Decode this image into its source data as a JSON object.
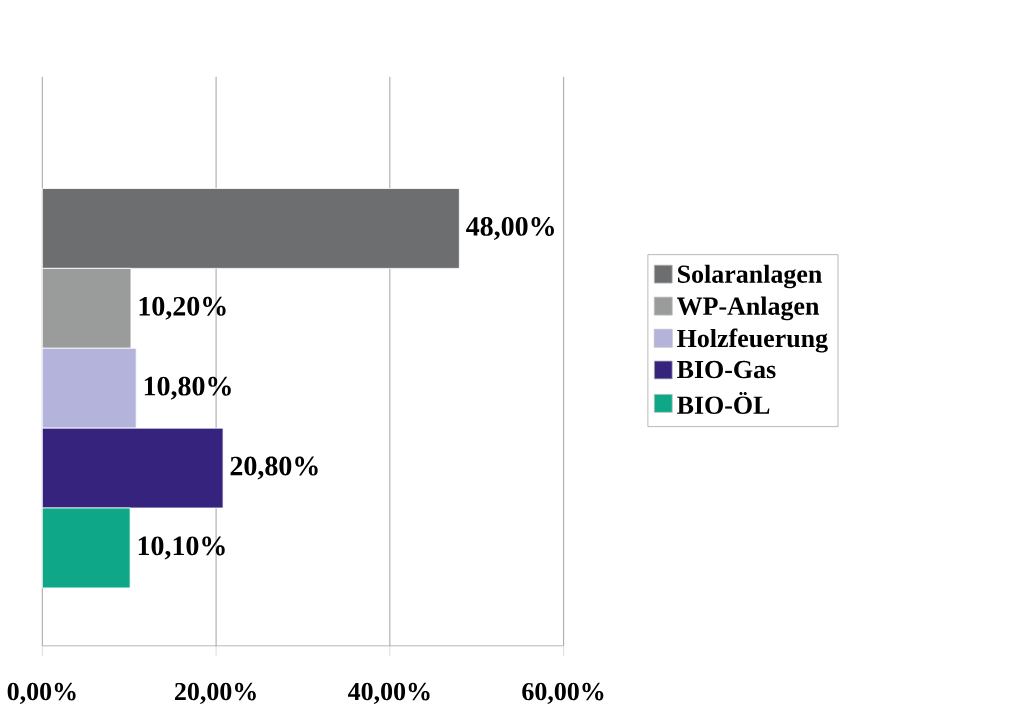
{
  "chart_data": {
    "type": "bar",
    "orientation": "horizontal",
    "categories": [
      null
    ],
    "series": [
      {
        "name": "Solaranlagen",
        "color": "#6d6e70",
        "values": [
          48.0
        ],
        "value_labels": [
          "48,00%"
        ]
      },
      {
        "name": "WP-Anlagen",
        "color": "#9a9c9c",
        "values": [
          10.2
        ],
        "value_labels": [
          "10,20%"
        ]
      },
      {
        "name": "Holzfeuerung",
        "color": "#b3b3dc",
        "values": [
          10.8
        ],
        "value_labels": [
          "10,80%"
        ]
      },
      {
        "name": "BIO-Gas",
        "color": "#35237e",
        "values": [
          20.8
        ],
        "value_labels": [
          "20,80%"
        ]
      },
      {
        "name": "BIO-ÖL",
        "color": "#0ea888",
        "values": [
          10.1
        ],
        "value_labels": [
          "10,10%"
        ]
      }
    ],
    "xlim": [
      0,
      60
    ],
    "xticks": [
      {
        "value": 0,
        "label": "0,00%"
      },
      {
        "value": 20,
        "label": "20,00%"
      },
      {
        "value": 40,
        "label": "40,00%"
      },
      {
        "value": 60,
        "label": "60,00%"
      }
    ],
    "grid": "x",
    "legend": "right"
  }
}
